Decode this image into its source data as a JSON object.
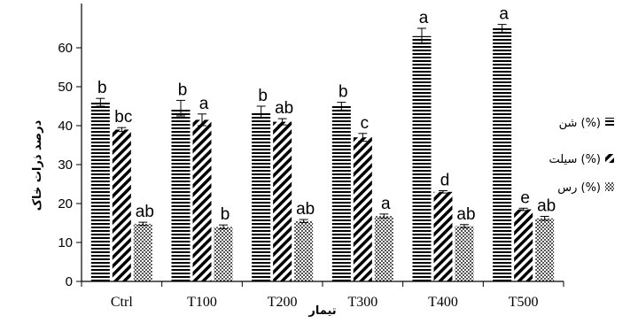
{
  "chart_data": {
    "type": "bar",
    "xlabel": "تیمار",
    "ylabel": "درصد ذرات خاک",
    "ylim": [
      0,
      70
    ],
    "yticks": [
      0,
      10,
      20,
      30,
      40,
      50,
      60
    ],
    "grid": false,
    "legend_position": "right",
    "categories": [
      "Ctrl",
      "T100",
      "T200",
      "T300",
      "T400",
      "T500"
    ],
    "series": [
      {
        "name": "شن (%)",
        "pattern": "horizontal-stripes",
        "values": [
          46,
          44.5,
          43.5,
          45,
          63,
          65
        ],
        "errors": [
          1.0,
          2.0,
          1.5,
          1.0,
          2.0,
          1.0
        ],
        "labels": [
          "b",
          "b",
          "b",
          "b",
          "a",
          "a"
        ]
      },
      {
        "name": "سیلت (%)",
        "pattern": "diagonal-stripes",
        "values": [
          39,
          41.5,
          41,
          37,
          23,
          18.5
        ],
        "errors": [
          0.5,
          1.5,
          0.8,
          1.0,
          0.3,
          0.3
        ],
        "labels": [
          "bc",
          "a",
          "ab",
          "c",
          "d",
          "e"
        ]
      },
      {
        "name": "رس (%)",
        "pattern": "crosshatch",
        "values": [
          14.8,
          14,
          15.5,
          16.8,
          14.2,
          16.2
        ],
        "errors": [
          0.4,
          0.5,
          0.4,
          0.5,
          0.4,
          0.5
        ],
        "labels": [
          "ab",
          "b",
          "ab",
          "a",
          "ab",
          "ab"
        ]
      }
    ],
    "colors": {
      "axis": "#000000",
      "bar_fill": "#000000",
      "background": "#ffffff"
    }
  }
}
